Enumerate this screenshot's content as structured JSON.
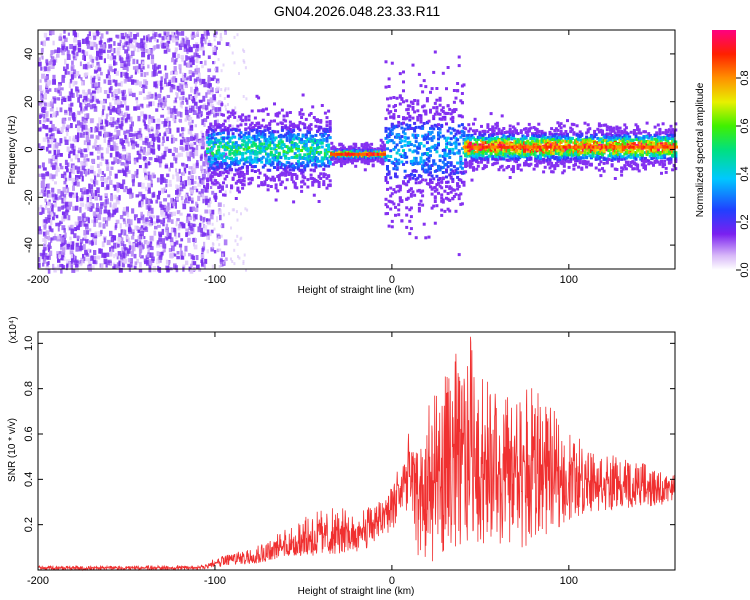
{
  "chart_data": [
    {
      "type": "heatmap",
      "title": "GN04.2026.048.23.33.R11",
      "xlabel": "Height of straight line (km)",
      "ylabel": "Frequency (Hz)",
      "xlim": [
        -200,
        160
      ],
      "ylim": [
        -50,
        50
      ],
      "x_ticks": [
        -200,
        -100,
        0,
        100
      ],
      "y_ticks": [
        -40,
        -20,
        0,
        20,
        40
      ],
      "colorbar": {
        "label": "Normalized spectral amplitude",
        "range": [
          0,
          1
        ],
        "ticks": [
          0.0,
          0.2,
          0.4,
          0.6,
          0.8
        ],
        "colormap": "rainbow"
      },
      "features": [
        {
          "x_range": [
            -200,
            -105
          ],
          "description": "broadband noise",
          "amplitude": 0.15
        },
        {
          "x_range": [
            -105,
            -35
          ],
          "center_freq": 0,
          "halfwidth": 6,
          "peak_amplitude": 0.55
        },
        {
          "x_range": [
            -35,
            -5
          ],
          "center_freq": -2,
          "halfwidth": 1,
          "peak_amplitude": 1.0
        },
        {
          "x_range": [
            -5,
            40
          ],
          "center_freq": 0,
          "halfwidth": 10,
          "peak_amplitude": 0.4
        },
        {
          "x_range": [
            40,
            160
          ],
          "center_freq": 1,
          "halfwidth": 3,
          "peak_amplitude": 1.0
        }
      ]
    },
    {
      "type": "line",
      "xlabel": "Height of straight line (km)",
      "ylabel": "SNR (10 * v/v)",
      "scale_label": "(x10⁴)",
      "xlim": [
        -200,
        160
      ],
      "ylim": [
        0,
        1.05
      ],
      "x_ticks": [
        -200,
        -100,
        0,
        100
      ],
      "y_ticks": [
        0.2,
        0.4,
        0.6,
        0.8,
        1.0
      ],
      "color": "#f03030",
      "envelope": {
        "x": [
          -200,
          -150,
          -110,
          -100,
          -90,
          -75,
          -60,
          -45,
          -30,
          -20,
          -10,
          0,
          10,
          15,
          20,
          30,
          40,
          45,
          50,
          60,
          70,
          80,
          90,
          100,
          110,
          120,
          130,
          140,
          150,
          160
        ],
        "upper": [
          0.02,
          0.02,
          0.02,
          0.05,
          0.08,
          0.12,
          0.18,
          0.26,
          0.28,
          0.25,
          0.3,
          0.38,
          0.62,
          0.55,
          0.72,
          0.86,
          1.02,
          1.05,
          0.88,
          0.8,
          0.76,
          0.82,
          0.72,
          0.62,
          0.58,
          0.52,
          0.5,
          0.48,
          0.44,
          0.42
        ],
        "lower": [
          0.0,
          0.0,
          0.0,
          0.01,
          0.02,
          0.03,
          0.05,
          0.06,
          0.07,
          0.08,
          0.1,
          0.18,
          0.22,
          0.05,
          0.02,
          0.06,
          0.1,
          0.12,
          0.12,
          0.1,
          0.08,
          0.12,
          0.16,
          0.22,
          0.25,
          0.26,
          0.27,
          0.28,
          0.28,
          0.3
        ],
        "mean": [
          0.01,
          0.01,
          0.01,
          0.03,
          0.05,
          0.07,
          0.11,
          0.15,
          0.16,
          0.17,
          0.2,
          0.3,
          0.42,
          0.35,
          0.35,
          0.46,
          0.52,
          0.55,
          0.5,
          0.46,
          0.43,
          0.46,
          0.44,
          0.42,
          0.41,
          0.4,
          0.38,
          0.37,
          0.36,
          0.36
        ]
      }
    }
  ]
}
